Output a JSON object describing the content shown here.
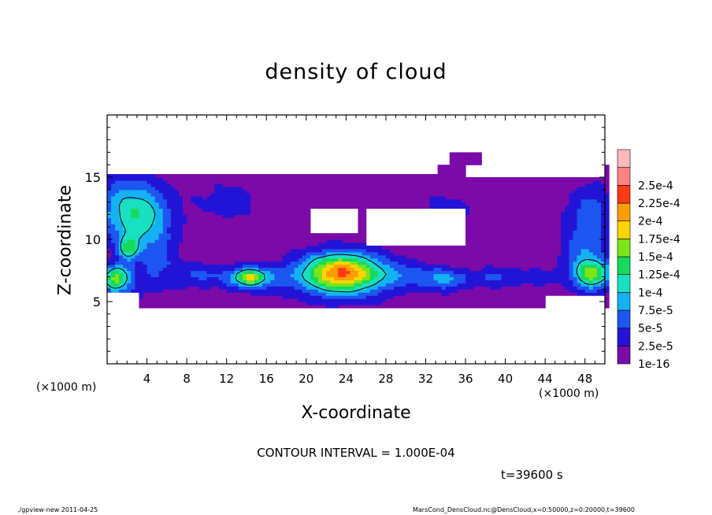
{
  "chart_data": {
    "type": "heatmap",
    "title": "density of cloud",
    "xlabel": "X-coordinate",
    "ylabel": "Z-coordinate",
    "x_unit_label": "(×1000 m)",
    "xlim": [
      0,
      50
    ],
    "ylim": [
      0,
      20
    ],
    "x_ticks": [
      4,
      8,
      12,
      16,
      20,
      24,
      28,
      32,
      36,
      40,
      44,
      48
    ],
    "y_ticks": [
      5,
      10,
      15
    ],
    "colorbar": {
      "labels": [
        "1e-16",
        "2.5e-5",
        "5e-5",
        "7.5e-5",
        "1e-4",
        "1.25e-4",
        "1.5e-4",
        "1.75e-4",
        "2e-4",
        "2.25e-4",
        "2.5e-4"
      ],
      "colors": [
        "#7b0aa8",
        "#2214d6",
        "#1d56f0",
        "#14b2f2",
        "#18e0c0",
        "#17d95c",
        "#7ce41a",
        "#ffd400",
        "#ff9c00",
        "#ff3a14",
        "#ff8282",
        "#ffb9b9"
      ]
    },
    "contour_levels": [
      0.0001
    ],
    "blobs": [
      {
        "x": 0.9,
        "z": 7.0,
        "rx": 1.2,
        "rz": 0.9,
        "a": 1.1
      },
      {
        "x": 2.1,
        "z": 9.3,
        "rx": 1.0,
        "rz": 1.0,
        "a": 1.0
      },
      {
        "x": 3.5,
        "z": 11.6,
        "rx": 3.0,
        "rz": 2.5,
        "a": 0.8
      },
      {
        "x": 1.6,
        "z": 12.8,
        "rx": 3.5,
        "rz": 2.5,
        "a": 0.55
      },
      {
        "x": 1.0,
        "z": 6.4,
        "rx": 2.2,
        "rz": 1.3,
        "a": 0.55
      },
      {
        "x": 14.5,
        "z": 6.9,
        "rx": 3.2,
        "rz": 1.0,
        "a": 0.7
      },
      {
        "x": 14.3,
        "z": 7.0,
        "rx": 1.3,
        "rz": 0.6,
        "a": 1.1
      },
      {
        "x": 23.5,
        "z": 7.4,
        "rx": 3.6,
        "rz": 1.5,
        "a": 1.65
      },
      {
        "x": 24.0,
        "z": 7.0,
        "rx": 6.0,
        "rz": 1.8,
        "a": 0.6
      },
      {
        "x": 34.0,
        "z": 6.8,
        "rx": 2.5,
        "rz": 0.9,
        "a": 0.65
      },
      {
        "x": 39.0,
        "z": 7.0,
        "rx": 2.0,
        "rz": 0.8,
        "a": 0.45
      },
      {
        "x": 48.8,
        "z": 7.2,
        "rx": 1.8,
        "rz": 1.1,
        "a": 1.3
      },
      {
        "x": 48.0,
        "z": 9.0,
        "rx": 2.2,
        "rz": 2.5,
        "a": 0.6
      },
      {
        "x": 48.5,
        "z": 12.5,
        "rx": 2.2,
        "rz": 2.0,
        "a": 0.45
      },
      {
        "x": 9.0,
        "z": 7.2,
        "rx": 2.5,
        "rz": 1.0,
        "a": 0.4
      },
      {
        "x": 5.0,
        "z": 8.0,
        "rx": 2.0,
        "rz": 2.2,
        "a": 0.4
      },
      {
        "x": 30.0,
        "z": 7.2,
        "rx": 3.0,
        "rz": 0.9,
        "a": 0.3
      },
      {
        "x": 43.0,
        "z": 7.0,
        "rx": 2.5,
        "rz": 0.8,
        "a": 0.3
      },
      {
        "x": 12.0,
        "z": 13.0,
        "rx": 3.5,
        "rz": 1.8,
        "a": 0.25
      },
      {
        "x": 34.0,
        "z": 12.5,
        "rx": 3.0,
        "rz": 1.5,
        "a": 0.25
      }
    ],
    "layer_z": [
      4.5,
      16.0
    ],
    "gaps": [
      {
        "x0": 26.0,
        "x1": 36.0,
        "z0": 9.5,
        "z1": 12.5
      },
      {
        "x0": 20.5,
        "x1": 25.0,
        "z0": 10.5,
        "z1": 12.5
      },
      {
        "x0": 36.0,
        "x1": 50.0,
        "z0": 15.0,
        "z1": 16.0
      },
      {
        "x0": 0.0,
        "x1": 33.0,
        "z0": 15.3,
        "z1": 16.0
      },
      {
        "x0": 0.0,
        "x1": 3.0,
        "z0": 4.5,
        "z1": 5.8
      },
      {
        "x0": 44.0,
        "x1": 50.0,
        "z0": 4.5,
        "z1": 5.6
      }
    ],
    "cap": {
      "x0": 34.5,
      "x1": 37.5,
      "z0": 16.0,
      "z1": 17.0
    }
  },
  "annotations": {
    "contour_interval": "CONTOUR INTERVAL = 1.000E-04",
    "time": "t=39600 s",
    "footer_left": "./gpview-new   2011-04-25",
    "footer_right": "MarsCond_DensCloud.nc@DensCloud,x=0:50000,z=0:20000,t=39600"
  }
}
